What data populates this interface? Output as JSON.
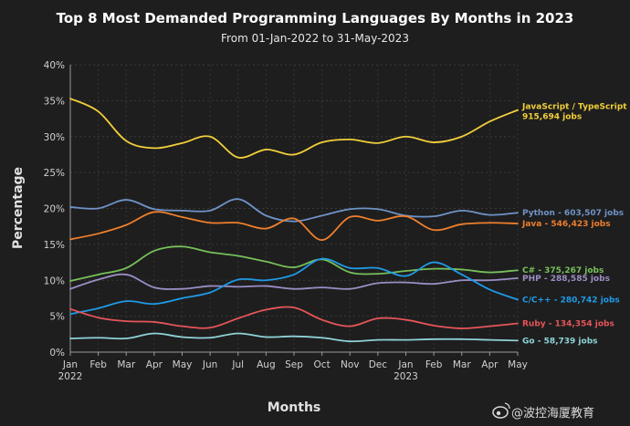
{
  "chart_data": {
    "type": "line",
    "title": "Top 8 Most Demanded Programming Languages By Months in 2023",
    "subtitle": "From 01-Jan-2022 to 31-May-2023",
    "xlabel": "Months",
    "ylabel": "Percentage",
    "ylim": [
      0,
      40
    ],
    "y_ticks": [
      "0%",
      "5%",
      "10%",
      "15%",
      "20%",
      "25%",
      "30%",
      "35%",
      "40%"
    ],
    "categories": [
      "Jan",
      "Feb",
      "Mar",
      "Apr",
      "May",
      "Jun",
      "Jul",
      "Aug",
      "Sep",
      "Oct",
      "Nov",
      "Dec",
      "Jan",
      "Feb",
      "Mar",
      "Apr",
      "May"
    ],
    "year_labels": [
      {
        "index": 0,
        "label": "2022"
      },
      {
        "index": 12,
        "label": "2023"
      }
    ],
    "grid": true,
    "series": [
      {
        "name": "JavaScript / TypeScript",
        "jobs": "915,694 jobs",
        "color": "#f2cf3a",
        "values": [
          35.3,
          33.5,
          29.4,
          28.4,
          29.1,
          30.0,
          27.1,
          28.2,
          27.5,
          29.2,
          29.6,
          29.1,
          30.0,
          29.2,
          30.0,
          32.1,
          33.7
        ]
      },
      {
        "name": "Python",
        "jobs": "603,507 jobs",
        "color": "#6f93c7",
        "values": [
          20.2,
          20.0,
          21.2,
          19.9,
          19.7,
          19.7,
          21.3,
          19.0,
          18.2,
          19.0,
          19.9,
          19.9,
          19.0,
          18.9,
          19.7,
          19.1,
          19.4
        ]
      },
      {
        "name": "Java",
        "jobs": "546,423 jobs",
        "color": "#ef7f2c",
        "values": [
          15.7,
          16.5,
          17.7,
          19.5,
          18.8,
          18.0,
          18.0,
          17.2,
          18.6,
          15.6,
          18.8,
          18.3,
          18.9,
          17.0,
          17.8,
          18.0,
          17.9
        ]
      },
      {
        "name": "C#",
        "jobs": "375,267 jobs",
        "color": "#76c05a",
        "values": [
          9.9,
          10.8,
          11.7,
          14.1,
          14.7,
          13.9,
          13.4,
          12.6,
          11.8,
          12.9,
          11.1,
          10.9,
          11.3,
          11.6,
          11.5,
          11.1,
          11.4
        ]
      },
      {
        "name": "PHP",
        "jobs": "288,585 jobs",
        "color": "#9b8ec4",
        "values": [
          8.8,
          10.1,
          10.8,
          9.0,
          8.8,
          9.2,
          9.1,
          9.2,
          8.8,
          9.0,
          8.8,
          9.6,
          9.7,
          9.5,
          10.0,
          10.0,
          10.3
        ]
      },
      {
        "name": "C/C++",
        "jobs": "280,742 jobs",
        "color": "#1f9ae6",
        "values": [
          5.3,
          6.1,
          7.1,
          6.7,
          7.5,
          8.3,
          10.1,
          10.0,
          10.8,
          13.0,
          11.7,
          11.7,
          10.6,
          12.5,
          10.8,
          8.7,
          7.3
        ]
      },
      {
        "name": "Ruby",
        "jobs": "134,354 jobs",
        "color": "#e65559",
        "values": [
          6.0,
          4.8,
          4.3,
          4.2,
          3.6,
          3.4,
          4.7,
          5.9,
          6.2,
          4.5,
          3.6,
          4.7,
          4.5,
          3.7,
          3.3,
          3.6,
          4.0
        ]
      },
      {
        "name": "Go",
        "jobs": "58,739 jobs",
        "color": "#8fd3d8",
        "values": [
          1.9,
          2.0,
          1.9,
          2.6,
          2.1,
          2.0,
          2.6,
          2.1,
          2.2,
          2.0,
          1.5,
          1.7,
          1.7,
          1.8,
          1.8,
          1.7,
          1.6
        ]
      }
    ]
  },
  "watermark": "@波控海厦教育"
}
